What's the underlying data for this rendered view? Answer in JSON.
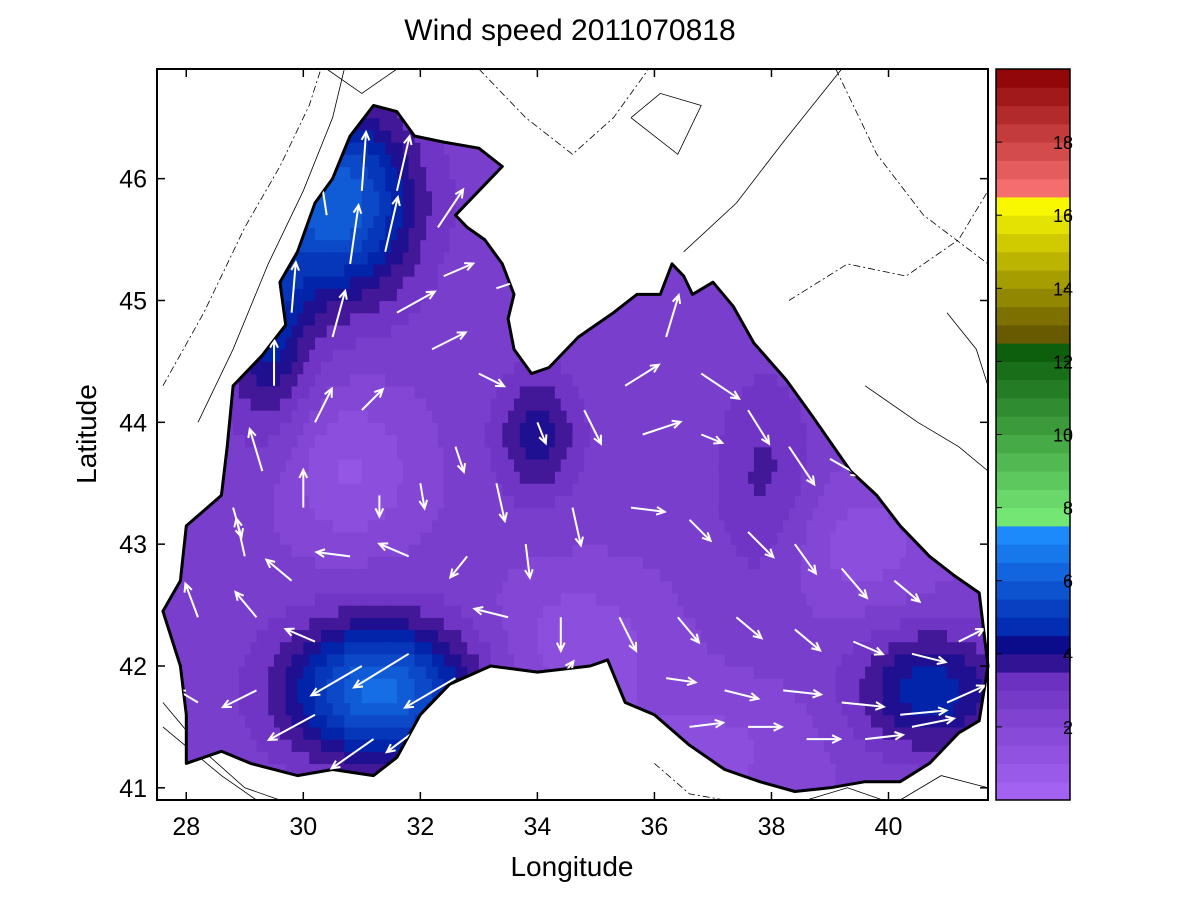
{
  "chart_data": {
    "type": "heatmap",
    "title": "Wind speed 2011070818",
    "xlabel": "Longitude",
    "ylabel": "Latitude",
    "xlim": [
      27.5,
      41.7
    ],
    "ylim": [
      40.9,
      46.9
    ],
    "xticks": [
      28,
      30,
      32,
      34,
      36,
      38,
      40
    ],
    "yticks": [
      41,
      42,
      43,
      44,
      45,
      46
    ],
    "colorbar": {
      "range": [
        0,
        20
      ],
      "ticks": [
        2,
        4,
        6,
        8,
        10,
        12,
        14,
        16,
        18
      ],
      "bands": [
        {
          "from": 0,
          "to": 3.4,
          "color_low": "#a766f5",
          "color_high": "#6a2fbf"
        },
        {
          "from": 3.4,
          "to": 4.4,
          "color_low": "#4a1a9a",
          "color_high": "#000a8a"
        },
        {
          "from": 4.4,
          "to": 7.4,
          "color_low": "#0020a8",
          "color_high": "#1e90ff"
        },
        {
          "from": 7.4,
          "to": 12.4,
          "color_low": "#7cf07c",
          "color_high": "#0a5a0a"
        },
        {
          "from": 12.4,
          "to": 16.4,
          "color_low": "#5a4a00",
          "color_high": "#ffff00"
        },
        {
          "from": 16.4,
          "to": 20,
          "color_low": "#ff7a7a",
          "color_high": "#8a0000"
        }
      ]
    },
    "field": {
      "background": 2.4,
      "centers": [
        {
          "lon": 30.8,
          "lat": 43.6,
          "value": -1.2,
          "sx": 0.8,
          "sy": 0.45
        },
        {
          "lon": 34.7,
          "lat": 42.2,
          "value": -1.0,
          "sx": 1.0,
          "sy": 0.4
        },
        {
          "lon": 39.5,
          "lat": 43.0,
          "value": -0.9,
          "sx": 1.0,
          "sy": 0.4
        },
        {
          "lon": 36.8,
          "lat": 41.3,
          "value": -0.8,
          "sx": 1.5,
          "sy": 0.4
        },
        {
          "lon": 30.6,
          "lat": 45.8,
          "value": 3.8,
          "sx": 0.9,
          "sy": 0.55
        },
        {
          "lon": 29.4,
          "lat": 44.8,
          "value": 2.0,
          "sx": 0.5,
          "sy": 0.6
        },
        {
          "lon": 31.3,
          "lat": 41.8,
          "value": 4.0,
          "sx": 1.1,
          "sy": 0.4
        },
        {
          "lon": 40.7,
          "lat": 41.8,
          "value": 2.2,
          "sx": 0.9,
          "sy": 0.35
        },
        {
          "lon": 34.0,
          "lat": 43.9,
          "value": 1.6,
          "sx": 0.5,
          "sy": 0.35
        },
        {
          "lon": 37.9,
          "lat": 43.5,
          "value": 1.0,
          "sx": 0.6,
          "sy": 0.6
        }
      ]
    },
    "coastline": [
      [
        28.0,
        41.2
      ],
      [
        28.6,
        41.3
      ],
      [
        29.1,
        41.2
      ],
      [
        29.9,
        41.1
      ],
      [
        30.5,
        41.15
      ],
      [
        31.2,
        41.1
      ],
      [
        31.6,
        41.25
      ],
      [
        32.0,
        41.6
      ],
      [
        32.5,
        41.85
      ],
      [
        33.2,
        42.0
      ],
      [
        34.0,
        41.95
      ],
      [
        34.9,
        42.0
      ],
      [
        35.2,
        42.05
      ],
      [
        35.5,
        41.7
      ],
      [
        36.0,
        41.6
      ],
      [
        36.6,
        41.35
      ],
      [
        37.2,
        41.15
      ],
      [
        37.8,
        41.05
      ],
      [
        38.4,
        40.97
      ],
      [
        39.0,
        41.0
      ],
      [
        39.6,
        41.05
      ],
      [
        40.2,
        41.05
      ],
      [
        40.7,
        41.2
      ],
      [
        41.2,
        41.45
      ],
      [
        41.55,
        41.55
      ],
      [
        41.7,
        42.0
      ],
      [
        41.55,
        42.6
      ],
      [
        41.1,
        42.75
      ],
      [
        40.7,
        42.9
      ],
      [
        40.2,
        43.15
      ],
      [
        39.8,
        43.4
      ],
      [
        39.35,
        43.6
      ],
      [
        38.7,
        44.05
      ],
      [
        38.25,
        44.35
      ],
      [
        37.7,
        44.65
      ],
      [
        37.35,
        44.95
      ],
      [
        37.0,
        45.15
      ],
      [
        36.65,
        45.05
      ],
      [
        36.5,
        45.2
      ],
      [
        36.3,
        45.3
      ],
      [
        36.1,
        45.05
      ],
      [
        35.7,
        45.05
      ],
      [
        35.3,
        44.9
      ],
      [
        35.0,
        44.8
      ],
      [
        34.7,
        44.7
      ],
      [
        34.2,
        44.45
      ],
      [
        33.9,
        44.4
      ],
      [
        33.6,
        44.6
      ],
      [
        33.5,
        44.85
      ],
      [
        33.6,
        45.05
      ],
      [
        33.4,
        45.3
      ],
      [
        33.1,
        45.5
      ],
      [
        32.8,
        45.6
      ],
      [
        32.6,
        45.7
      ],
      [
        33.0,
        45.9
      ],
      [
        33.4,
        46.1
      ],
      [
        33.0,
        46.25
      ],
      [
        32.4,
        46.3
      ],
      [
        31.9,
        46.35
      ],
      [
        31.6,
        46.55
      ],
      [
        31.2,
        46.6
      ],
      [
        30.8,
        46.35
      ],
      [
        30.5,
        46.0
      ],
      [
        30.2,
        45.8
      ],
      [
        29.9,
        45.4
      ],
      [
        29.6,
        45.15
      ],
      [
        29.7,
        44.8
      ],
      [
        29.3,
        44.55
      ],
      [
        28.8,
        44.3
      ],
      [
        28.7,
        43.8
      ],
      [
        28.6,
        43.4
      ],
      [
        28.0,
        43.15
      ],
      [
        27.9,
        42.7
      ],
      [
        27.6,
        42.45
      ],
      [
        27.9,
        42.0
      ],
      [
        28.0,
        41.6
      ],
      [
        28.0,
        41.2
      ]
    ],
    "isolines": [
      [
        [
          27.6,
          44.3
        ],
        [
          28.3,
          44.9
        ],
        [
          29.0,
          45.6
        ],
        [
          29.6,
          46.1
        ],
        [
          30.1,
          46.6
        ],
        [
          30.3,
          46.9
        ]
      ],
      [
        [
          28.2,
          44.0
        ],
        [
          28.8,
          44.6
        ],
        [
          29.4,
          45.3
        ],
        [
          30.0,
          45.9
        ],
        [
          30.5,
          46.5
        ],
        [
          30.7,
          46.9
        ]
      ],
      [
        [
          30.4,
          46.9
        ],
        [
          31.0,
          46.7
        ],
        [
          31.6,
          46.9
        ]
      ],
      [
        [
          33.0,
          46.9
        ],
        [
          33.8,
          46.5
        ],
        [
          34.6,
          46.2
        ],
        [
          35.3,
          46.5
        ],
        [
          35.9,
          46.9
        ]
      ],
      [
        [
          35.6,
          46.5
        ],
        [
          36.4,
          46.2
        ],
        [
          36.8,
          46.6
        ],
        [
          36.1,
          46.7
        ],
        [
          35.6,
          46.5
        ]
      ],
      [
        [
          36.5,
          45.4
        ],
        [
          37.4,
          45.8
        ],
        [
          38.2,
          46.3
        ],
        [
          39.2,
          46.9
        ]
      ],
      [
        [
          38.3,
          45.0
        ],
        [
          39.3,
          45.3
        ],
        [
          40.3,
          45.2
        ],
        [
          41.2,
          45.5
        ],
        [
          41.7,
          45.9
        ]
      ],
      [
        [
          39.6,
          44.3
        ],
        [
          40.5,
          44.0
        ],
        [
          41.2,
          43.8
        ],
        [
          41.7,
          43.6
        ]
      ],
      [
        [
          41.0,
          44.9
        ],
        [
          41.5,
          44.6
        ],
        [
          41.7,
          44.3
        ]
      ],
      [
        [
          39.1,
          46.9
        ],
        [
          39.8,
          46.2
        ],
        [
          40.6,
          45.7
        ],
        [
          41.7,
          45.3
        ]
      ],
      [
        [
          27.6,
          41.7
        ],
        [
          28.3,
          41.3
        ],
        [
          29.0,
          41.0
        ],
        [
          29.6,
          40.9
        ]
      ],
      [
        [
          27.6,
          41.5
        ],
        [
          28.6,
          41.1
        ],
        [
          29.2,
          40.9
        ]
      ],
      [
        [
          36.0,
          41.2
        ],
        [
          36.6,
          40.95
        ],
        [
          37.2,
          40.9
        ]
      ],
      [
        [
          38.6,
          40.9
        ],
        [
          39.3,
          41.0
        ],
        [
          39.9,
          40.9
        ]
      ],
      [
        [
          40.2,
          40.9
        ],
        [
          40.9,
          41.1
        ],
        [
          41.7,
          41.0
        ]
      ]
    ],
    "vectors": [
      [
        31.0,
        45.9,
        0.1,
        1.4
      ],
      [
        31.6,
        45.9,
        0.3,
        1.3
      ],
      [
        30.4,
        45.7,
        -0.2,
        1.3
      ],
      [
        30.8,
        45.3,
        0.2,
        1.4
      ],
      [
        31.4,
        45.4,
        0.3,
        1.3
      ],
      [
        32.3,
        45.6,
        0.6,
        0.9
      ],
      [
        29.8,
        44.9,
        0.1,
        1.2
      ],
      [
        30.5,
        44.7,
        0.3,
        1.1
      ],
      [
        29.5,
        44.3,
        0.0,
        1.1
      ],
      [
        31.6,
        44.9,
        0.9,
        0.5
      ],
      [
        32.4,
        45.2,
        0.7,
        0.3
      ],
      [
        33.3,
        45.1,
        0.6,
        0.2
      ],
      [
        32.2,
        44.6,
        0.8,
        0.4
      ],
      [
        33.0,
        44.4,
        0.6,
        -0.3
      ],
      [
        33.9,
        44.6,
        0.6,
        0.4
      ],
      [
        30.2,
        44.0,
        0.4,
        0.8
      ],
      [
        31.0,
        44.1,
        0.5,
        0.5
      ],
      [
        32.6,
        43.8,
        0.2,
        -0.6
      ],
      [
        29.3,
        43.6,
        -0.3,
        1.0
      ],
      [
        30.0,
        43.3,
        0.0,
        0.9
      ],
      [
        31.3,
        43.4,
        0.0,
        -0.5
      ],
      [
        32.0,
        43.5,
        0.1,
        -0.6
      ],
      [
        33.3,
        43.5,
        0.2,
        -0.9
      ],
      [
        34.0,
        44.0,
        0.2,
        -0.5
      ],
      [
        34.8,
        44.1,
        0.4,
        -0.8
      ],
      [
        35.5,
        44.3,
        0.8,
        0.5
      ],
      [
        36.2,
        44.7,
        0.3,
        1.0
      ],
      [
        36.8,
        44.4,
        0.9,
        -0.6
      ],
      [
        35.8,
        43.9,
        0.9,
        0.3
      ],
      [
        36.8,
        43.9,
        0.5,
        -0.2
      ],
      [
        37.6,
        44.1,
        0.5,
        -0.8
      ],
      [
        38.3,
        43.8,
        0.6,
        -0.9
      ],
      [
        39.0,
        43.7,
        0.7,
        -0.4
      ],
      [
        29.0,
        42.9,
        -0.2,
        0.9
      ],
      [
        29.8,
        42.7,
        -0.6,
        0.5
      ],
      [
        30.8,
        42.9,
        -0.8,
        0.1
      ],
      [
        31.8,
        42.9,
        -0.7,
        0.3
      ],
      [
        32.8,
        42.9,
        -0.4,
        -0.5
      ],
      [
        33.8,
        43.0,
        0.1,
        -0.8
      ],
      [
        34.6,
        43.3,
        0.2,
        -0.9
      ],
      [
        35.6,
        43.3,
        0.8,
        -0.1
      ],
      [
        36.6,
        43.2,
        0.5,
        -0.5
      ],
      [
        37.6,
        43.1,
        0.6,
        -0.6
      ],
      [
        38.4,
        43.0,
        0.5,
        -0.7
      ],
      [
        39.2,
        42.8,
        0.6,
        -0.7
      ],
      [
        40.1,
        42.7,
        0.6,
        -0.5
      ],
      [
        28.2,
        42.4,
        -0.3,
        0.8
      ],
      [
        29.2,
        42.4,
        -0.5,
        0.6
      ],
      [
        30.2,
        42.2,
        -0.7,
        0.3
      ],
      [
        31.0,
        42.0,
        -1.2,
        -0.7
      ],
      [
        31.8,
        42.1,
        -1.3,
        -0.8
      ],
      [
        32.6,
        41.9,
        -1.2,
        -0.7
      ],
      [
        33.5,
        42.4,
        -0.8,
        0.2
      ],
      [
        34.4,
        42.4,
        0.0,
        -0.8
      ],
      [
        35.4,
        42.4,
        0.4,
        -0.8
      ],
      [
        36.4,
        42.4,
        0.5,
        -0.6
      ],
      [
        37.4,
        42.4,
        0.6,
        -0.5
      ],
      [
        38.4,
        42.3,
        0.6,
        -0.5
      ],
      [
        39.4,
        42.2,
        0.7,
        -0.3
      ],
      [
        40.4,
        42.1,
        0.8,
        -0.2
      ],
      [
        41.2,
        42.2,
        0.6,
        0.3
      ],
      [
        28.2,
        41.7,
        -0.5,
        0.3
      ],
      [
        29.2,
        41.8,
        -0.8,
        -0.4
      ],
      [
        30.2,
        41.6,
        -1.1,
        -0.6
      ],
      [
        31.2,
        41.4,
        -1.0,
        -0.7
      ],
      [
        32.0,
        41.5,
        -0.8,
        -0.6
      ],
      [
        36.2,
        41.9,
        0.7,
        -0.1
      ],
      [
        37.2,
        41.8,
        0.8,
        -0.2
      ],
      [
        38.2,
        41.8,
        0.9,
        -0.1
      ],
      [
        39.2,
        41.7,
        1.0,
        -0.1
      ],
      [
        40.2,
        41.6,
        1.1,
        0.1
      ],
      [
        41.0,
        41.7,
        0.9,
        0.4
      ],
      [
        36.6,
        41.5,
        0.8,
        0.1
      ],
      [
        37.6,
        41.5,
        0.8,
        0.0
      ],
      [
        38.6,
        41.4,
        0.8,
        0.0
      ],
      [
        39.6,
        41.4,
        0.9,
        0.1
      ],
      [
        40.4,
        41.5,
        1.0,
        0.2
      ],
      [
        41.2,
        41.4,
        0.7,
        0.2
      ],
      [
        28.8,
        43.3,
        0.2,
        -0.7
      ],
      [
        34.4,
        41.9,
        0.3,
        0.4
      ]
    ]
  }
}
